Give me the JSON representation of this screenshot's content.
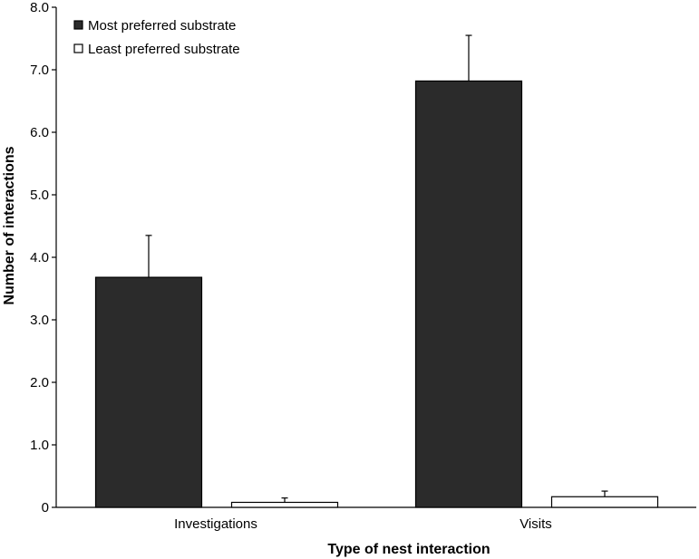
{
  "chart_data": {
    "type": "bar",
    "title": "",
    "xlabel": "Type of nest interaction",
    "ylabel": "Number of interactions",
    "ylim": [
      0,
      8
    ],
    "yticks": [
      0,
      1,
      2,
      3,
      4,
      5,
      6,
      7,
      8
    ],
    "ytick_labels": [
      "0",
      "1.0",
      "2.0",
      "3.0",
      "4.0",
      "5.0",
      "6.0",
      "7.0",
      "8.0"
    ],
    "categories": [
      "Investigations",
      "Visits"
    ],
    "series": [
      {
        "name": "Most preferred substrate",
        "color": "#2b2b2b",
        "values": [
          3.68,
          6.82
        ],
        "errors": [
          0.67,
          0.73
        ]
      },
      {
        "name": "Least preferred substrate",
        "color": "#ffffff",
        "values": [
          0.08,
          0.17
        ],
        "errors": [
          0.07,
          0.09
        ]
      }
    ],
    "legend_position": "top-left",
    "grid": false
  }
}
